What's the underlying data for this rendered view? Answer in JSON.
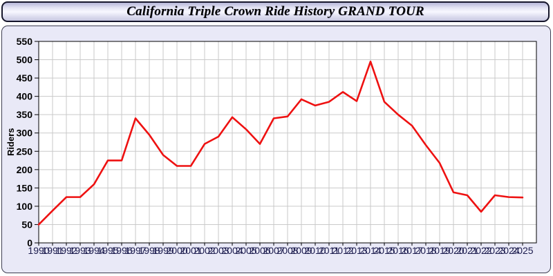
{
  "header": {
    "title": "California Triple Crown Ride History GRAND TOUR"
  },
  "chart_data": {
    "type": "line",
    "title": "California Triple Crown Ride History GRAND TOUR",
    "xlabel": "",
    "ylabel": "Riders",
    "x": [
      1990,
      1991,
      1992,
      1993,
      1994,
      1995,
      1996,
      1997,
      1998,
      1999,
      2000,
      2001,
      2002,
      2003,
      2004,
      2005,
      2006,
      2007,
      2008,
      2009,
      2010,
      2011,
      2012,
      2013,
      2014,
      2015,
      2016,
      2017,
      2018,
      2019,
      2020,
      2021,
      2022,
      2023,
      2024,
      2025
    ],
    "series": [
      {
        "name": "Riders",
        "values": [
          50,
          88,
          125,
          125,
          160,
          225,
          225,
          340,
          295,
          240,
          210,
          210,
          270,
          290,
          343,
          310,
          270,
          340,
          345,
          392,
          375,
          385,
          412,
          387,
          495,
          385,
          350,
          320,
          267,
          218,
          138,
          130,
          85,
          130,
          125,
          124
        ]
      }
    ],
    "ylim": [
      0,
      550
    ],
    "ytick_step": 50,
    "grid": true,
    "legend": "none",
    "line_color": "#ee1111",
    "x_label_color": "#1c1c4e",
    "y_label_color": "#000000",
    "panel_background": "#e9e9f7",
    "plot_background": "#ffffff",
    "grid_color": "#c9c9c9"
  }
}
